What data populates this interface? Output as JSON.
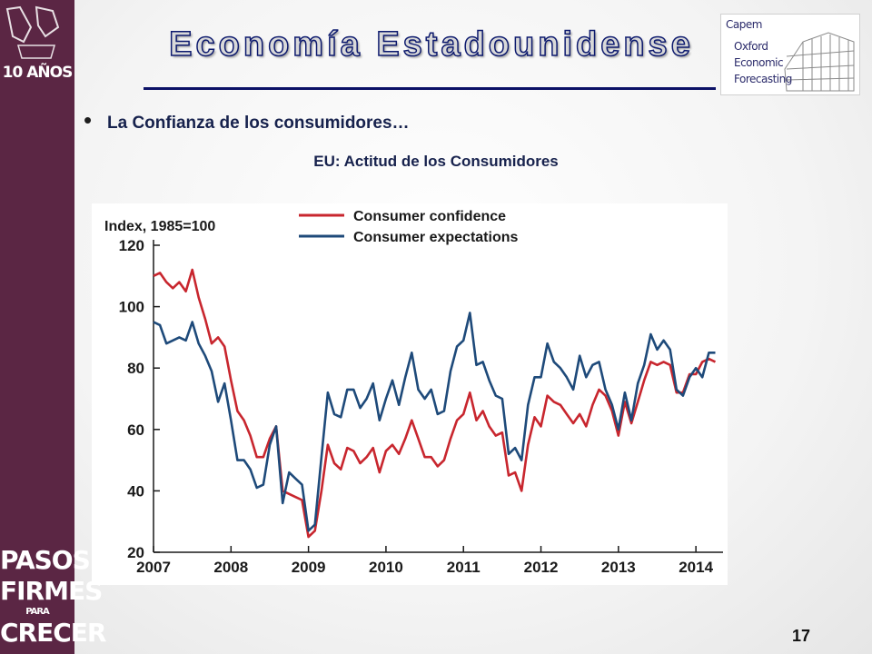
{
  "slide": {
    "title": "Economía Estadounidense",
    "bullet": "La Confianza de los consumidores…",
    "chart_caption": "EU: Actitud de los Consumidores",
    "page_number": "17"
  },
  "branding": {
    "top_logo_text": "10 AÑOS",
    "bottom_lines": [
      "PASOS",
      "FIRMES",
      "PARA",
      "CRECER"
    ],
    "oxford_logo_lines": [
      "Capem",
      "Oxford",
      "Economic",
      "Forecasting"
    ],
    "sidebar_color": "#5b2644"
  },
  "chart_data": {
    "type": "line",
    "ylabel": "Index, 1985=100",
    "ylim": [
      20,
      120
    ],
    "yticks": [
      20,
      40,
      60,
      80,
      100,
      120
    ],
    "xlim": [
      2007,
      2014.35
    ],
    "xticks": [
      2007,
      2008,
      2009,
      2010,
      2011,
      2012,
      2013,
      2014
    ],
    "legend_position": "top",
    "grid": false,
    "series": [
      {
        "name": "Consumer confidence",
        "color": "#c8262e",
        "x": [
          2007.0,
          2007.083,
          2007.167,
          2007.25,
          2007.333,
          2007.417,
          2007.5,
          2007.583,
          2007.667,
          2007.75,
          2007.833,
          2007.917,
          2008.0,
          2008.083,
          2008.167,
          2008.25,
          2008.333,
          2008.417,
          2008.5,
          2008.583,
          2008.667,
          2008.75,
          2008.833,
          2008.917,
          2009.0,
          2009.083,
          2009.167,
          2009.25,
          2009.333,
          2009.417,
          2009.5,
          2009.583,
          2009.667,
          2009.75,
          2009.833,
          2009.917,
          2010.0,
          2010.083,
          2010.167,
          2010.25,
          2010.333,
          2010.417,
          2010.5,
          2010.583,
          2010.667,
          2010.75,
          2010.833,
          2010.917,
          2011.0,
          2011.083,
          2011.167,
          2011.25,
          2011.333,
          2011.417,
          2011.5,
          2011.583,
          2011.667,
          2011.75,
          2011.833,
          2011.917,
          2012.0,
          2012.083,
          2012.167,
          2012.25,
          2012.333,
          2012.417,
          2012.5,
          2012.583,
          2012.667,
          2012.75,
          2012.833,
          2012.917,
          2013.0,
          2013.083,
          2013.167,
          2013.25,
          2013.333,
          2013.417,
          2013.5,
          2013.583,
          2013.667,
          2013.75,
          2013.833,
          2013.917,
          2014.0,
          2014.083,
          2014.167,
          2014.25
        ],
        "values": [
          110,
          111,
          108,
          106,
          108,
          105,
          112,
          103,
          96,
          88,
          90,
          87,
          76,
          66,
          63,
          58,
          51,
          51,
          57,
          61,
          40,
          39,
          38,
          37,
          25,
          27,
          40,
          55,
          49,
          47,
          54,
          53,
          49,
          51,
          54,
          46,
          53,
          55,
          52,
          57,
          63,
          57,
          51,
          51,
          48,
          50,
          57,
          63,
          65,
          72,
          63,
          66,
          61,
          58,
          59,
          45,
          46,
          40,
          55,
          64,
          61,
          71,
          69,
          68,
          65,
          62,
          65,
          61,
          68,
          73,
          71,
          66,
          58,
          69,
          62,
          69,
          76,
          82,
          81,
          82,
          81,
          72,
          72,
          78,
          78,
          82,
          83,
          82
        ]
      },
      {
        "name": "Consumer expectations",
        "color": "#1e4a7a",
        "x": [
          2007.0,
          2007.083,
          2007.167,
          2007.25,
          2007.333,
          2007.417,
          2007.5,
          2007.583,
          2007.667,
          2007.75,
          2007.833,
          2007.917,
          2008.0,
          2008.083,
          2008.167,
          2008.25,
          2008.333,
          2008.417,
          2008.5,
          2008.583,
          2008.667,
          2008.75,
          2008.833,
          2008.917,
          2009.0,
          2009.083,
          2009.167,
          2009.25,
          2009.333,
          2009.417,
          2009.5,
          2009.583,
          2009.667,
          2009.75,
          2009.833,
          2009.917,
          2010.0,
          2010.083,
          2010.167,
          2010.25,
          2010.333,
          2010.417,
          2010.5,
          2010.583,
          2010.667,
          2010.75,
          2010.833,
          2010.917,
          2011.0,
          2011.083,
          2011.167,
          2011.25,
          2011.333,
          2011.417,
          2011.5,
          2011.583,
          2011.667,
          2011.75,
          2011.833,
          2011.917,
          2012.0,
          2012.083,
          2012.167,
          2012.25,
          2012.333,
          2012.417,
          2012.5,
          2012.583,
          2012.667,
          2012.75,
          2012.833,
          2012.917,
          2013.0,
          2013.083,
          2013.167,
          2013.25,
          2013.333,
          2013.417,
          2013.5,
          2013.583,
          2013.667,
          2013.75,
          2013.833,
          2013.917,
          2014.0,
          2014.083,
          2014.167,
          2014.25
        ],
        "values": [
          95,
          94,
          88,
          89,
          90,
          89,
          95,
          88,
          84,
          79,
          69,
          75,
          63,
          50,
          50,
          47,
          41,
          42,
          55,
          61,
          36,
          46,
          44,
          42,
          27,
          29,
          51,
          72,
          65,
          64,
          73,
          73,
          67,
          70,
          75,
          63,
          70,
          76,
          68,
          77,
          85,
          73,
          70,
          73,
          65,
          66,
          79,
          87,
          89,
          98,
          81,
          82,
          76,
          71,
          70,
          52,
          54,
          50,
          68,
          77,
          77,
          88,
          82,
          80,
          77,
          73,
          84,
          77,
          81,
          82,
          73,
          68,
          60,
          72,
          63,
          75,
          81,
          91,
          86,
          89,
          86,
          73,
          71,
          77,
          80,
          77,
          85,
          85
        ]
      }
    ]
  }
}
